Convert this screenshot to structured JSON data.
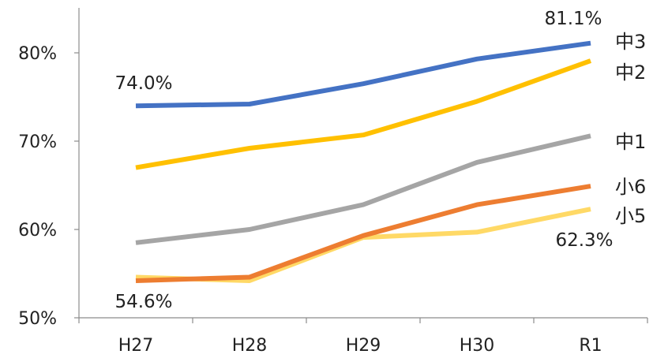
{
  "chart_data": {
    "type": "line",
    "title": "",
    "categories": [
      "H27",
      "H28",
      "H29",
      "H30",
      "R1"
    ],
    "ylim": [
      50,
      85
    ],
    "yticks": [
      "50%",
      "60%",
      "70%",
      "80%"
    ],
    "ytick_values": [
      50,
      60,
      70,
      80
    ],
    "grid": false,
    "series": [
      {
        "name": "中3",
        "color": "#4472C4",
        "values": [
          74.0,
          74.2,
          76.5,
          79.3,
          81.1
        ]
      },
      {
        "name": "中2",
        "color": "#FFC000",
        "values": [
          67.0,
          69.2,
          70.7,
          74.5,
          79.1
        ]
      },
      {
        "name": "中1",
        "color": "#A5A5A5",
        "values": [
          58.5,
          60.0,
          62.8,
          67.6,
          70.6
        ]
      },
      {
        "name": "小6",
        "color": "#ED7D31",
        "values": [
          54.2,
          54.6,
          59.3,
          62.8,
          64.9
        ]
      },
      {
        "name": "小5",
        "color": "#FFD966",
        "values": [
          54.6,
          54.2,
          59.1,
          59.7,
          62.3
        ]
      }
    ],
    "annotations": [
      "74.0%",
      "81.1%",
      "54.6%",
      "62.3%"
    ]
  }
}
